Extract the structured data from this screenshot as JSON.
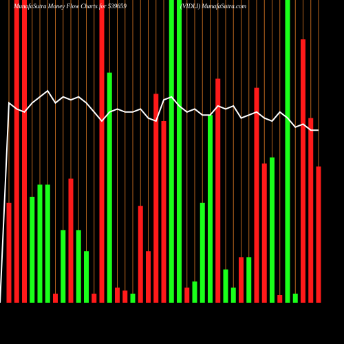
{
  "chart_data": {
    "type": "bar",
    "title": "MunafaSutra  Money Flow  Charts for 539659",
    "subtitle": "(VIDLI) MunafaSutra.com",
    "categories": [
      null,
      null,
      null,
      null,
      null,
      null,
      null,
      null,
      null,
      null,
      null,
      null,
      null,
      null,
      null,
      null,
      null,
      null,
      null,
      null,
      null,
      null,
      null,
      null,
      null,
      null,
      null,
      null,
      null,
      null,
      null,
      null,
      null,
      null,
      null,
      null,
      null,
      null,
      null,
      null,
      null
    ],
    "values": [
      33,
      100,
      100,
      35,
      39,
      39,
      3,
      24,
      41,
      24,
      17,
      3,
      100,
      76,
      5,
      4,
      3,
      32,
      17,
      69,
      60,
      100,
      100,
      5,
      7,
      33,
      62,
      74,
      11,
      5,
      15,
      15,
      71,
      46,
      48,
      2.5,
      100,
      3,
      87,
      61,
      45
    ],
    "colors": [
      "#ff1a1a",
      "#ff1a1a",
      "#ff1a1a",
      "#1aff1a",
      "#1aff1a",
      "#1aff1a",
      "#ff1a1a",
      "#1aff1a",
      "#ff1a1a",
      "#1aff1a",
      "#1aff1a",
      "#ff1a1a",
      "#ff1a1a",
      "#1aff1a",
      "#ff1a1a",
      "#ff1a1a",
      "#1aff1a",
      "#ff1a1a",
      "#ff1a1a",
      "#ff1a1a",
      "#ff1a1a",
      "#1aff1a",
      "#1aff1a",
      "#ff1a1a",
      "#1aff1a",
      "#1aff1a",
      "#1aff1a",
      "#ff1a1a",
      "#1aff1a",
      "#1aff1a",
      "#ff1a1a",
      "#1aff1a",
      "#ff1a1a",
      "#ff1a1a",
      "#1aff1a",
      "#ff1a1a",
      "#1aff1a",
      "#1aff1a",
      "#ff1a1a",
      "#ff1a1a",
      "#ff1a1a"
    ],
    "line": {
      "color": "#ffffff",
      "values": [
        66,
        64,
        63,
        66,
        68,
        70,
        66,
        68,
        67,
        68,
        66,
        63,
        60,
        63,
        64,
        63,
        63,
        64,
        61,
        60,
        67,
        68,
        65,
        63,
        64,
        62,
        62,
        65,
        64,
        65,
        61,
        62,
        63,
        61,
        60,
        63,
        61,
        58,
        59,
        57,
        57
      ]
    },
    "ylim": [
      0,
      100
    ],
    "grid": true,
    "grid_color": "#b8651e"
  }
}
